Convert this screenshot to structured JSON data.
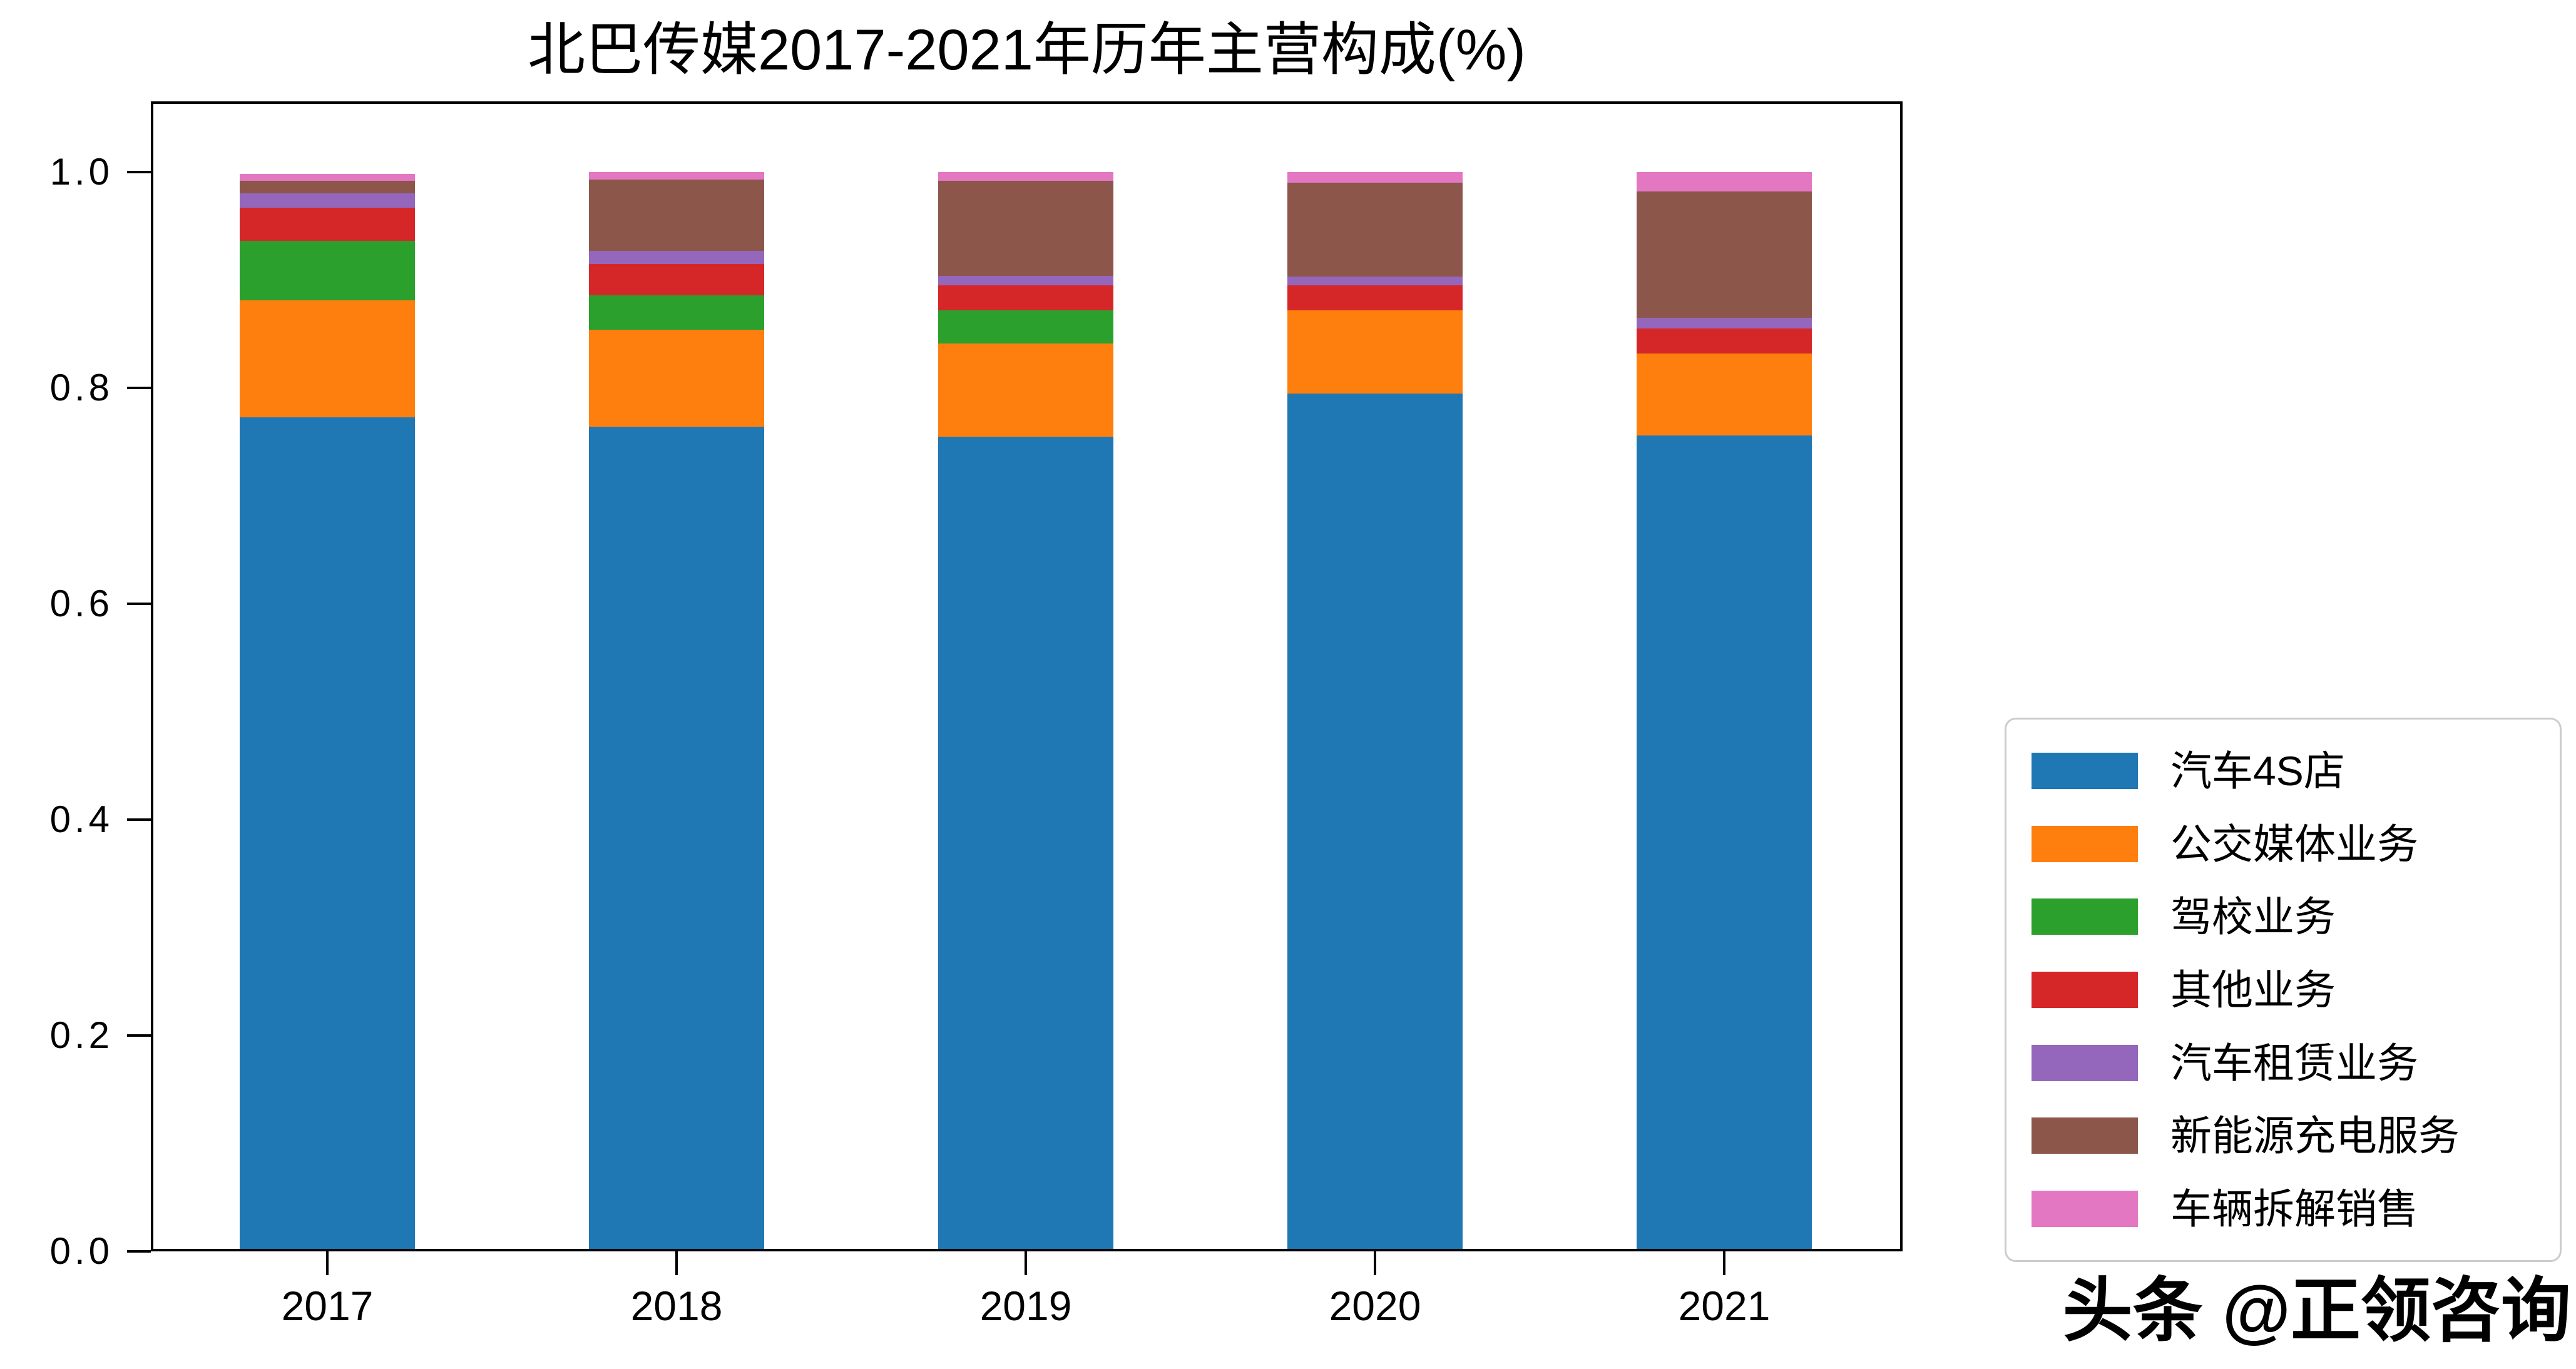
{
  "watermark": {
    "text": "头条 @正领咨询"
  },
  "chart_data": {
    "type": "bar",
    "stacked": true,
    "title": "北巴传媒2017-2021年历年主营构成(%)",
    "xlabel": "",
    "ylabel": "",
    "grid": false,
    "categories": [
      "2017",
      "2018",
      "2019",
      "2020",
      "2021"
    ],
    "series": [
      {
        "name": "汽车4S店",
        "color": "#1f77b4",
        "values": [
          0.773,
          0.764,
          0.755,
          0.795,
          0.756
        ]
      },
      {
        "name": "公交媒体业务",
        "color": "#ff7f0e",
        "values": [
          0.108,
          0.09,
          0.086,
          0.077,
          0.076
        ]
      },
      {
        "name": "驾校业务",
        "color": "#2ca02c",
        "values": [
          0.055,
          0.032,
          0.031,
          0,
          0
        ]
      },
      {
        "name": "其他业务",
        "color": "#d62728",
        "values": [
          0.031,
          0.029,
          0.023,
          0.023,
          0.023
        ]
      },
      {
        "name": "汽车租赁业务",
        "color": "#9467bd",
        "values": [
          0.013,
          0.012,
          0.009,
          0.008,
          0.01
        ]
      },
      {
        "name": "新能源充电服务",
        "color": "#8c564b",
        "values": [
          0.012,
          0.066,
          0.088,
          0.087,
          0.117
        ]
      },
      {
        "name": "车辆拆解销售",
        "color": "#e377c2",
        "values": [
          0.006,
          0.007,
          0.008,
          0.01,
          0.018
        ]
      }
    ],
    "yticks": [
      {
        "label": "0.0",
        "value": 0.0
      },
      {
        "label": "0.2",
        "value": 0.2
      },
      {
        "label": "0.4",
        "value": 0.4
      },
      {
        "label": "0.6",
        "value": 0.6
      },
      {
        "label": "0.8",
        "value": 0.8
      },
      {
        "label": "1.0",
        "value": 1.0
      }
    ],
    "ylim": [
      0,
      1.0655
    ],
    "legend": {
      "position": "right-outside",
      "border_color": "#cccccc",
      "background": "#ffffff"
    }
  }
}
